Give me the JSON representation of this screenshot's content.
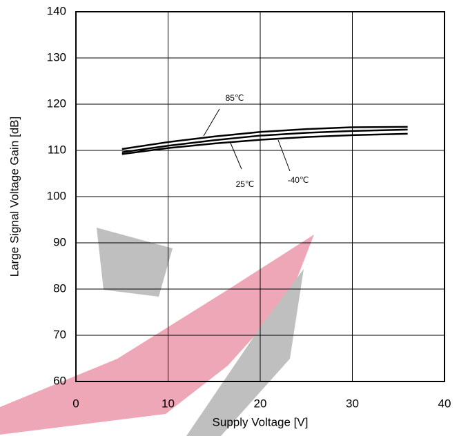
{
  "chart_data": {
    "type": "line",
    "x_label": "Supply Voltage [V]",
    "y_label": "Large Signal Voltage Gain [dB]",
    "x": [
      5,
      10,
      15,
      20,
      25,
      30,
      36
    ],
    "series": [
      {
        "name": "85℃",
        "color": "#000000",
        "values": [
          110.3,
          111.8,
          113.0,
          114.0,
          114.6,
          115.0,
          115.1
        ]
      },
      {
        "name": "25℃",
        "color": "#000000",
        "values": [
          109.6,
          111.0,
          112.2,
          113.2,
          113.8,
          114.2,
          114.5
        ]
      },
      {
        "name": "-40℃",
        "color": "#000000",
        "values": [
          109.2,
          110.5,
          111.5,
          112.3,
          112.9,
          113.3,
          113.6
        ]
      }
    ],
    "xlim": [
      0,
      40
    ],
    "xticks": [
      0,
      10,
      20,
      30,
      40
    ],
    "ylim": [
      60,
      140
    ],
    "yticks": [
      60,
      70,
      80,
      90,
      100,
      110,
      120,
      130,
      140
    ],
    "grid": true
  }
}
